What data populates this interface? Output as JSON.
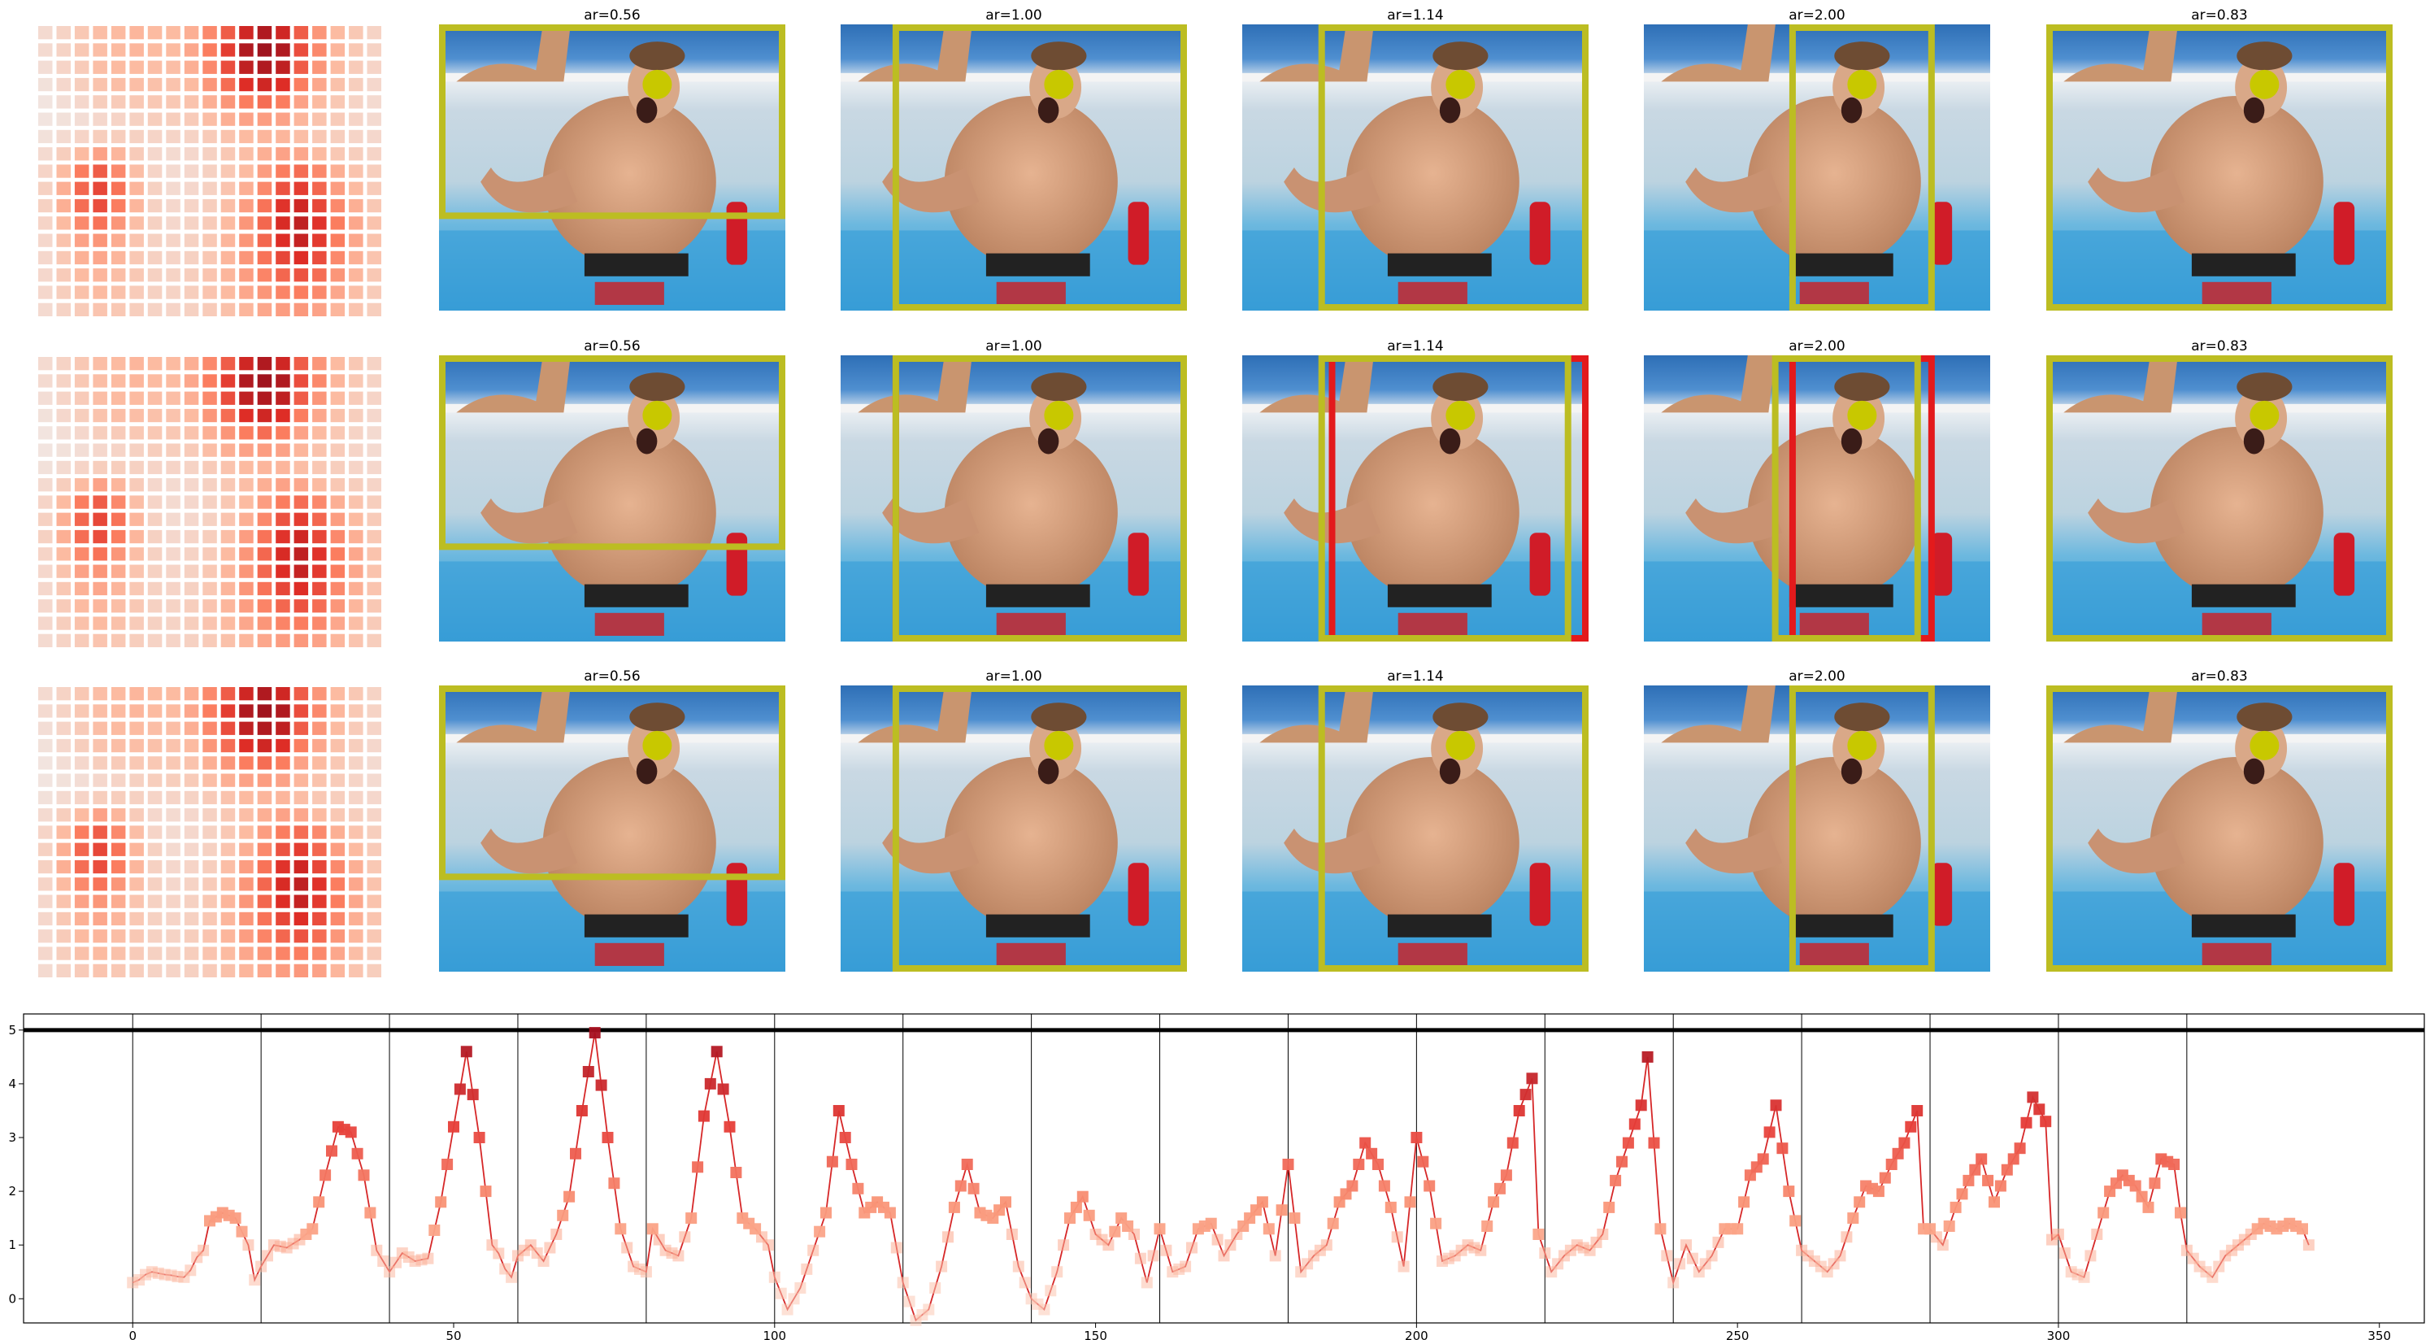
{
  "figure": {
    "panel_titles": [
      "ar=0.56",
      "ar=1.00",
      "ar=1.14",
      "ar=2.00",
      "ar=0.83"
    ],
    "rows": 3,
    "colors": {
      "box_yellow": "#bcbd22",
      "box_red": "#e31a1c",
      "face_dot": "#c8c800",
      "line": "#d62728",
      "threshold": "#000000"
    },
    "heatmap_grid": {
      "cols": 19,
      "rows": 17,
      "values": [
        [
          0.1,
          0.15,
          0.22,
          0.28,
          0.3,
          0.32,
          0.3,
          0.3,
          0.35,
          0.5,
          0.65,
          0.85,
          0.95,
          0.85,
          0.65,
          0.45,
          0.3,
          0.22,
          0.15
        ],
        [
          0.1,
          0.15,
          0.22,
          0.28,
          0.3,
          0.32,
          0.3,
          0.3,
          0.38,
          0.55,
          0.75,
          0.95,
          1.0,
          0.95,
          0.7,
          0.5,
          0.32,
          0.22,
          0.15
        ],
        [
          0.08,
          0.14,
          0.2,
          0.28,
          0.3,
          0.3,
          0.28,
          0.28,
          0.35,
          0.5,
          0.7,
          0.9,
          0.95,
          0.9,
          0.65,
          0.45,
          0.3,
          0.2,
          0.14
        ],
        [
          0.06,
          0.12,
          0.18,
          0.25,
          0.28,
          0.28,
          0.26,
          0.25,
          0.3,
          0.45,
          0.6,
          0.8,
          0.85,
          0.8,
          0.55,
          0.38,
          0.26,
          0.18,
          0.12
        ],
        [
          0.04,
          0.08,
          0.12,
          0.18,
          0.2,
          0.22,
          0.22,
          0.22,
          0.25,
          0.35,
          0.45,
          0.55,
          0.6,
          0.55,
          0.4,
          0.3,
          0.22,
          0.15,
          0.1
        ],
        [
          0.04,
          0.06,
          0.08,
          0.12,
          0.14,
          0.16,
          0.18,
          0.18,
          0.2,
          0.28,
          0.35,
          0.4,
          0.42,
          0.4,
          0.32,
          0.25,
          0.2,
          0.14,
          0.1
        ],
        [
          0.06,
          0.1,
          0.14,
          0.18,
          0.18,
          0.16,
          0.14,
          0.14,
          0.15,
          0.2,
          0.25,
          0.3,
          0.32,
          0.32,
          0.28,
          0.22,
          0.18,
          0.14,
          0.12
        ],
        [
          0.1,
          0.18,
          0.3,
          0.4,
          0.32,
          0.2,
          0.12,
          0.1,
          0.12,
          0.16,
          0.22,
          0.28,
          0.35,
          0.4,
          0.38,
          0.3,
          0.22,
          0.18,
          0.14
        ],
        [
          0.14,
          0.3,
          0.55,
          0.65,
          0.5,
          0.28,
          0.14,
          0.1,
          0.12,
          0.16,
          0.22,
          0.3,
          0.42,
          0.55,
          0.6,
          0.5,
          0.35,
          0.25,
          0.18
        ],
        [
          0.16,
          0.35,
          0.62,
          0.72,
          0.58,
          0.32,
          0.16,
          0.1,
          0.12,
          0.16,
          0.24,
          0.35,
          0.5,
          0.68,
          0.75,
          0.62,
          0.42,
          0.3,
          0.2
        ],
        [
          0.16,
          0.35,
          0.6,
          0.7,
          0.55,
          0.32,
          0.16,
          0.12,
          0.14,
          0.18,
          0.28,
          0.42,
          0.58,
          0.78,
          0.85,
          0.72,
          0.5,
          0.35,
          0.22
        ],
        [
          0.14,
          0.3,
          0.5,
          0.58,
          0.45,
          0.28,
          0.16,
          0.12,
          0.15,
          0.2,
          0.3,
          0.45,
          0.62,
          0.82,
          0.9,
          0.78,
          0.55,
          0.38,
          0.25
        ],
        [
          0.12,
          0.25,
          0.4,
          0.45,
          0.36,
          0.24,
          0.16,
          0.14,
          0.16,
          0.22,
          0.32,
          0.45,
          0.62,
          0.8,
          0.88,
          0.76,
          0.55,
          0.38,
          0.25
        ],
        [
          0.12,
          0.22,
          0.34,
          0.38,
          0.32,
          0.22,
          0.16,
          0.14,
          0.16,
          0.22,
          0.32,
          0.45,
          0.58,
          0.72,
          0.8,
          0.7,
          0.5,
          0.35,
          0.24
        ],
        [
          0.12,
          0.2,
          0.3,
          0.32,
          0.28,
          0.22,
          0.16,
          0.15,
          0.18,
          0.24,
          0.32,
          0.42,
          0.52,
          0.62,
          0.68,
          0.6,
          0.45,
          0.32,
          0.22
        ],
        [
          0.12,
          0.18,
          0.26,
          0.3,
          0.26,
          0.2,
          0.16,
          0.15,
          0.18,
          0.24,
          0.3,
          0.38,
          0.45,
          0.52,
          0.55,
          0.5,
          0.38,
          0.28,
          0.2
        ],
        [
          0.1,
          0.15,
          0.2,
          0.24,
          0.22,
          0.18,
          0.15,
          0.14,
          0.16,
          0.2,
          0.26,
          0.32,
          0.38,
          0.42,
          0.44,
          0.4,
          0.32,
          0.24,
          0.18
        ]
      ]
    },
    "crop_boxes": [
      [
        {
          "ar": "0.56",
          "yellow": [
            0.0,
            0.0,
            1.0,
            0.68
          ]
        },
        {
          "ar": "1.00",
          "yellow": [
            0.15,
            0.0,
            1.0,
            1.0
          ]
        },
        {
          "ar": "1.14",
          "yellow": [
            0.22,
            0.0,
            1.0,
            1.0
          ]
        },
        {
          "ar": "2.00",
          "yellow": [
            0.42,
            0.0,
            0.84,
            1.0
          ]
        },
        {
          "ar": "0.83",
          "yellow": [
            0.0,
            0.0,
            1.0,
            1.0
          ]
        }
      ],
      [
        {
          "ar": "0.56",
          "yellow": [
            0.0,
            0.0,
            1.0,
            0.68
          ]
        },
        {
          "ar": "1.00",
          "yellow": [
            0.15,
            0.0,
            1.0,
            1.0
          ],
          "red": [
            0.15,
            0.0,
            1.0,
            1.0
          ]
        },
        {
          "ar": "1.14",
          "yellow": [
            0.22,
            0.0,
            0.95,
            1.0
          ],
          "red": [
            0.25,
            0.0,
            1.0,
            1.0
          ]
        },
        {
          "ar": "2.00",
          "yellow": [
            0.37,
            0.0,
            0.8,
            1.0
          ],
          "red": [
            0.42,
            0.0,
            0.84,
            1.0
          ]
        },
        {
          "ar": "0.83",
          "yellow": [
            0.0,
            0.0,
            1.0,
            1.0
          ]
        }
      ],
      [
        {
          "ar": "0.56",
          "yellow": [
            0.0,
            0.0,
            1.0,
            0.68
          ]
        },
        {
          "ar": "1.00",
          "yellow": [
            0.15,
            0.0,
            1.0,
            1.0
          ]
        },
        {
          "ar": "1.14",
          "yellow": [
            0.22,
            0.0,
            1.0,
            1.0
          ]
        },
        {
          "ar": "2.00",
          "yellow": [
            0.42,
            0.0,
            0.84,
            1.0
          ]
        },
        {
          "ar": "0.83",
          "yellow": [
            0.0,
            0.0,
            1.0,
            1.0
          ]
        }
      ]
    ],
    "face_dot_center": [
      0.63,
      0.21
    ]
  },
  "chart_data": {
    "type": "line",
    "title": "",
    "xlabel": "",
    "ylabel": "",
    "xlim": [
      -17,
      357
    ],
    "ylim": [
      -0.45,
      5.3
    ],
    "xticks": [
      0,
      50,
      100,
      150,
      200,
      250,
      300,
      350
    ],
    "yticks": [
      0,
      1,
      2,
      3,
      4,
      5
    ],
    "threshold": 5,
    "vlines": [
      0,
      20,
      40,
      60,
      80,
      100,
      120,
      140,
      160,
      180,
      200,
      220,
      240,
      260,
      280,
      300,
      320
    ],
    "grid": false,
    "series": [
      {
        "anchors": [
          [
            0,
            0.3
          ],
          [
            3,
            0.5
          ],
          [
            5,
            0.45
          ],
          [
            8,
            0.4
          ],
          [
            11,
            0.9
          ],
          [
            12,
            1.45
          ],
          [
            14,
            1.6
          ],
          [
            16,
            1.5
          ],
          [
            18,
            1.0
          ],
          [
            19,
            0.35
          ],
          [
            20,
            0.6
          ],
          [
            22,
            1.0
          ],
          [
            24,
            0.95
          ],
          [
            26,
            1.1
          ],
          [
            28,
            1.3
          ],
          [
            30,
            2.3
          ],
          [
            32,
            3.2
          ],
          [
            34,
            3.1
          ],
          [
            36,
            2.3
          ],
          [
            38,
            0.9
          ],
          [
            40,
            0.5
          ],
          [
            42,
            0.85
          ],
          [
            44,
            0.7
          ],
          [
            46,
            0.75
          ],
          [
            48,
            1.8
          ],
          [
            50,
            3.2
          ],
          [
            52,
            4.6
          ],
          [
            54,
            3.0
          ],
          [
            56,
            1.0
          ],
          [
            59,
            0.4
          ],
          [
            60,
            0.8
          ],
          [
            62,
            1.0
          ],
          [
            64,
            0.7
          ],
          [
            66,
            1.2
          ],
          [
            68,
            1.9
          ],
          [
            70,
            3.5
          ],
          [
            72,
            4.95
          ],
          [
            74,
            3.0
          ],
          [
            76,
            1.3
          ],
          [
            78,
            0.6
          ],
          [
            80,
            0.5
          ],
          [
            81,
            1.3
          ],
          [
            83,
            0.9
          ],
          [
            85,
            0.8
          ],
          [
            87,
            1.5
          ],
          [
            89,
            3.4
          ],
          [
            91,
            4.6
          ],
          [
            93,
            3.2
          ],
          [
            95,
            1.5
          ],
          [
            97,
            1.3
          ],
          [
            99,
            1.0
          ],
          [
            100,
            0.4
          ],
          [
            102,
            -0.2
          ],
          [
            104,
            0.2
          ],
          [
            106,
            0.9
          ],
          [
            108,
            1.6
          ],
          [
            110,
            3.5
          ],
          [
            112,
            2.5
          ],
          [
            114,
            1.6
          ],
          [
            116,
            1.8
          ],
          [
            118,
            1.6
          ],
          [
            120,
            0.3
          ],
          [
            122,
            -0.4
          ],
          [
            124,
            -0.2
          ],
          [
            126,
            0.6
          ],
          [
            128,
            1.7
          ],
          [
            130,
            2.5
          ],
          [
            132,
            1.6
          ],
          [
            134,
            1.5
          ],
          [
            136,
            1.8
          ],
          [
            138,
            0.6
          ],
          [
            140,
            0.0
          ],
          [
            142,
            -0.2
          ],
          [
            144,
            0.5
          ],
          [
            146,
            1.5
          ],
          [
            148,
            1.9
          ],
          [
            150,
            1.2
          ],
          [
            152,
            1.0
          ],
          [
            154,
            1.5
          ],
          [
            156,
            1.2
          ],
          [
            158,
            0.3
          ],
          [
            160,
            1.3
          ],
          [
            162,
            0.5
          ],
          [
            164,
            0.6
          ],
          [
            166,
            1.3
          ],
          [
            168,
            1.4
          ],
          [
            170,
            0.8
          ],
          [
            172,
            1.2
          ],
          [
            174,
            1.5
          ],
          [
            176,
            1.8
          ],
          [
            178,
            0.8
          ],
          [
            180,
            2.5
          ],
          [
            182,
            0.5
          ],
          [
            184,
            0.8
          ],
          [
            186,
            1.0
          ],
          [
            188,
            1.8
          ],
          [
            190,
            2.1
          ],
          [
            192,
            2.9
          ],
          [
            194,
            2.5
          ],
          [
            196,
            1.7
          ],
          [
            198,
            0.6
          ],
          [
            200,
            3.0
          ],
          [
            202,
            2.1
          ],
          [
            204,
            0.7
          ],
          [
            206,
            0.8
          ],
          [
            208,
            1.0
          ],
          [
            210,
            0.9
          ],
          [
            212,
            1.8
          ],
          [
            214,
            2.3
          ],
          [
            216,
            3.5
          ],
          [
            218,
            4.1
          ],
          [
            219,
            1.2
          ],
          [
            221,
            0.5
          ],
          [
            223,
            0.8
          ],
          [
            225,
            1.0
          ],
          [
            227,
            0.9
          ],
          [
            229,
            1.2
          ],
          [
            231,
            2.2
          ],
          [
            233,
            2.9
          ],
          [
            235,
            3.6
          ],
          [
            236,
            4.5
          ],
          [
            238,
            1.3
          ],
          [
            240,
            0.3
          ],
          [
            242,
            1.0
          ],
          [
            244,
            0.5
          ],
          [
            246,
            0.8
          ],
          [
            248,
            1.3
          ],
          [
            250,
            1.3
          ],
          [
            252,
            2.3
          ],
          [
            254,
            2.6
          ],
          [
            256,
            3.6
          ],
          [
            258,
            2.0
          ],
          [
            260,
            0.9
          ],
          [
            262,
            0.7
          ],
          [
            264,
            0.5
          ],
          [
            266,
            0.8
          ],
          [
            268,
            1.5
          ],
          [
            270,
            2.1
          ],
          [
            272,
            2.0
          ],
          [
            274,
            2.5
          ],
          [
            276,
            2.9
          ],
          [
            278,
            3.5
          ],
          [
            279,
            1.3
          ],
          [
            280,
            1.3
          ],
          [
            282,
            1.0
          ],
          [
            284,
            1.7
          ],
          [
            286,
            2.2
          ],
          [
            288,
            2.6
          ],
          [
            290,
            1.8
          ],
          [
            292,
            2.4
          ],
          [
            294,
            2.8
          ],
          [
            296,
            3.75
          ],
          [
            298,
            3.3
          ],
          [
            299,
            1.1
          ],
          [
            300,
            1.2
          ],
          [
            302,
            0.5
          ],
          [
            304,
            0.4
          ],
          [
            306,
            1.2
          ],
          [
            308,
            2.0
          ],
          [
            310,
            2.3
          ],
          [
            312,
            2.1
          ],
          [
            314,
            1.7
          ],
          [
            316,
            2.6
          ],
          [
            318,
            2.5
          ],
          [
            319,
            1.6
          ],
          [
            320,
            0.9
          ],
          [
            322,
            0.6
          ],
          [
            324,
            0.4
          ],
          [
            326,
            0.8
          ],
          [
            328,
            1.0
          ],
          [
            330,
            1.2
          ],
          [
            332,
            1.4
          ],
          [
            334,
            1.3
          ],
          [
            336,
            1.4
          ],
          [
            338,
            1.3
          ],
          [
            339,
            1.0
          ]
        ]
      }
    ]
  }
}
